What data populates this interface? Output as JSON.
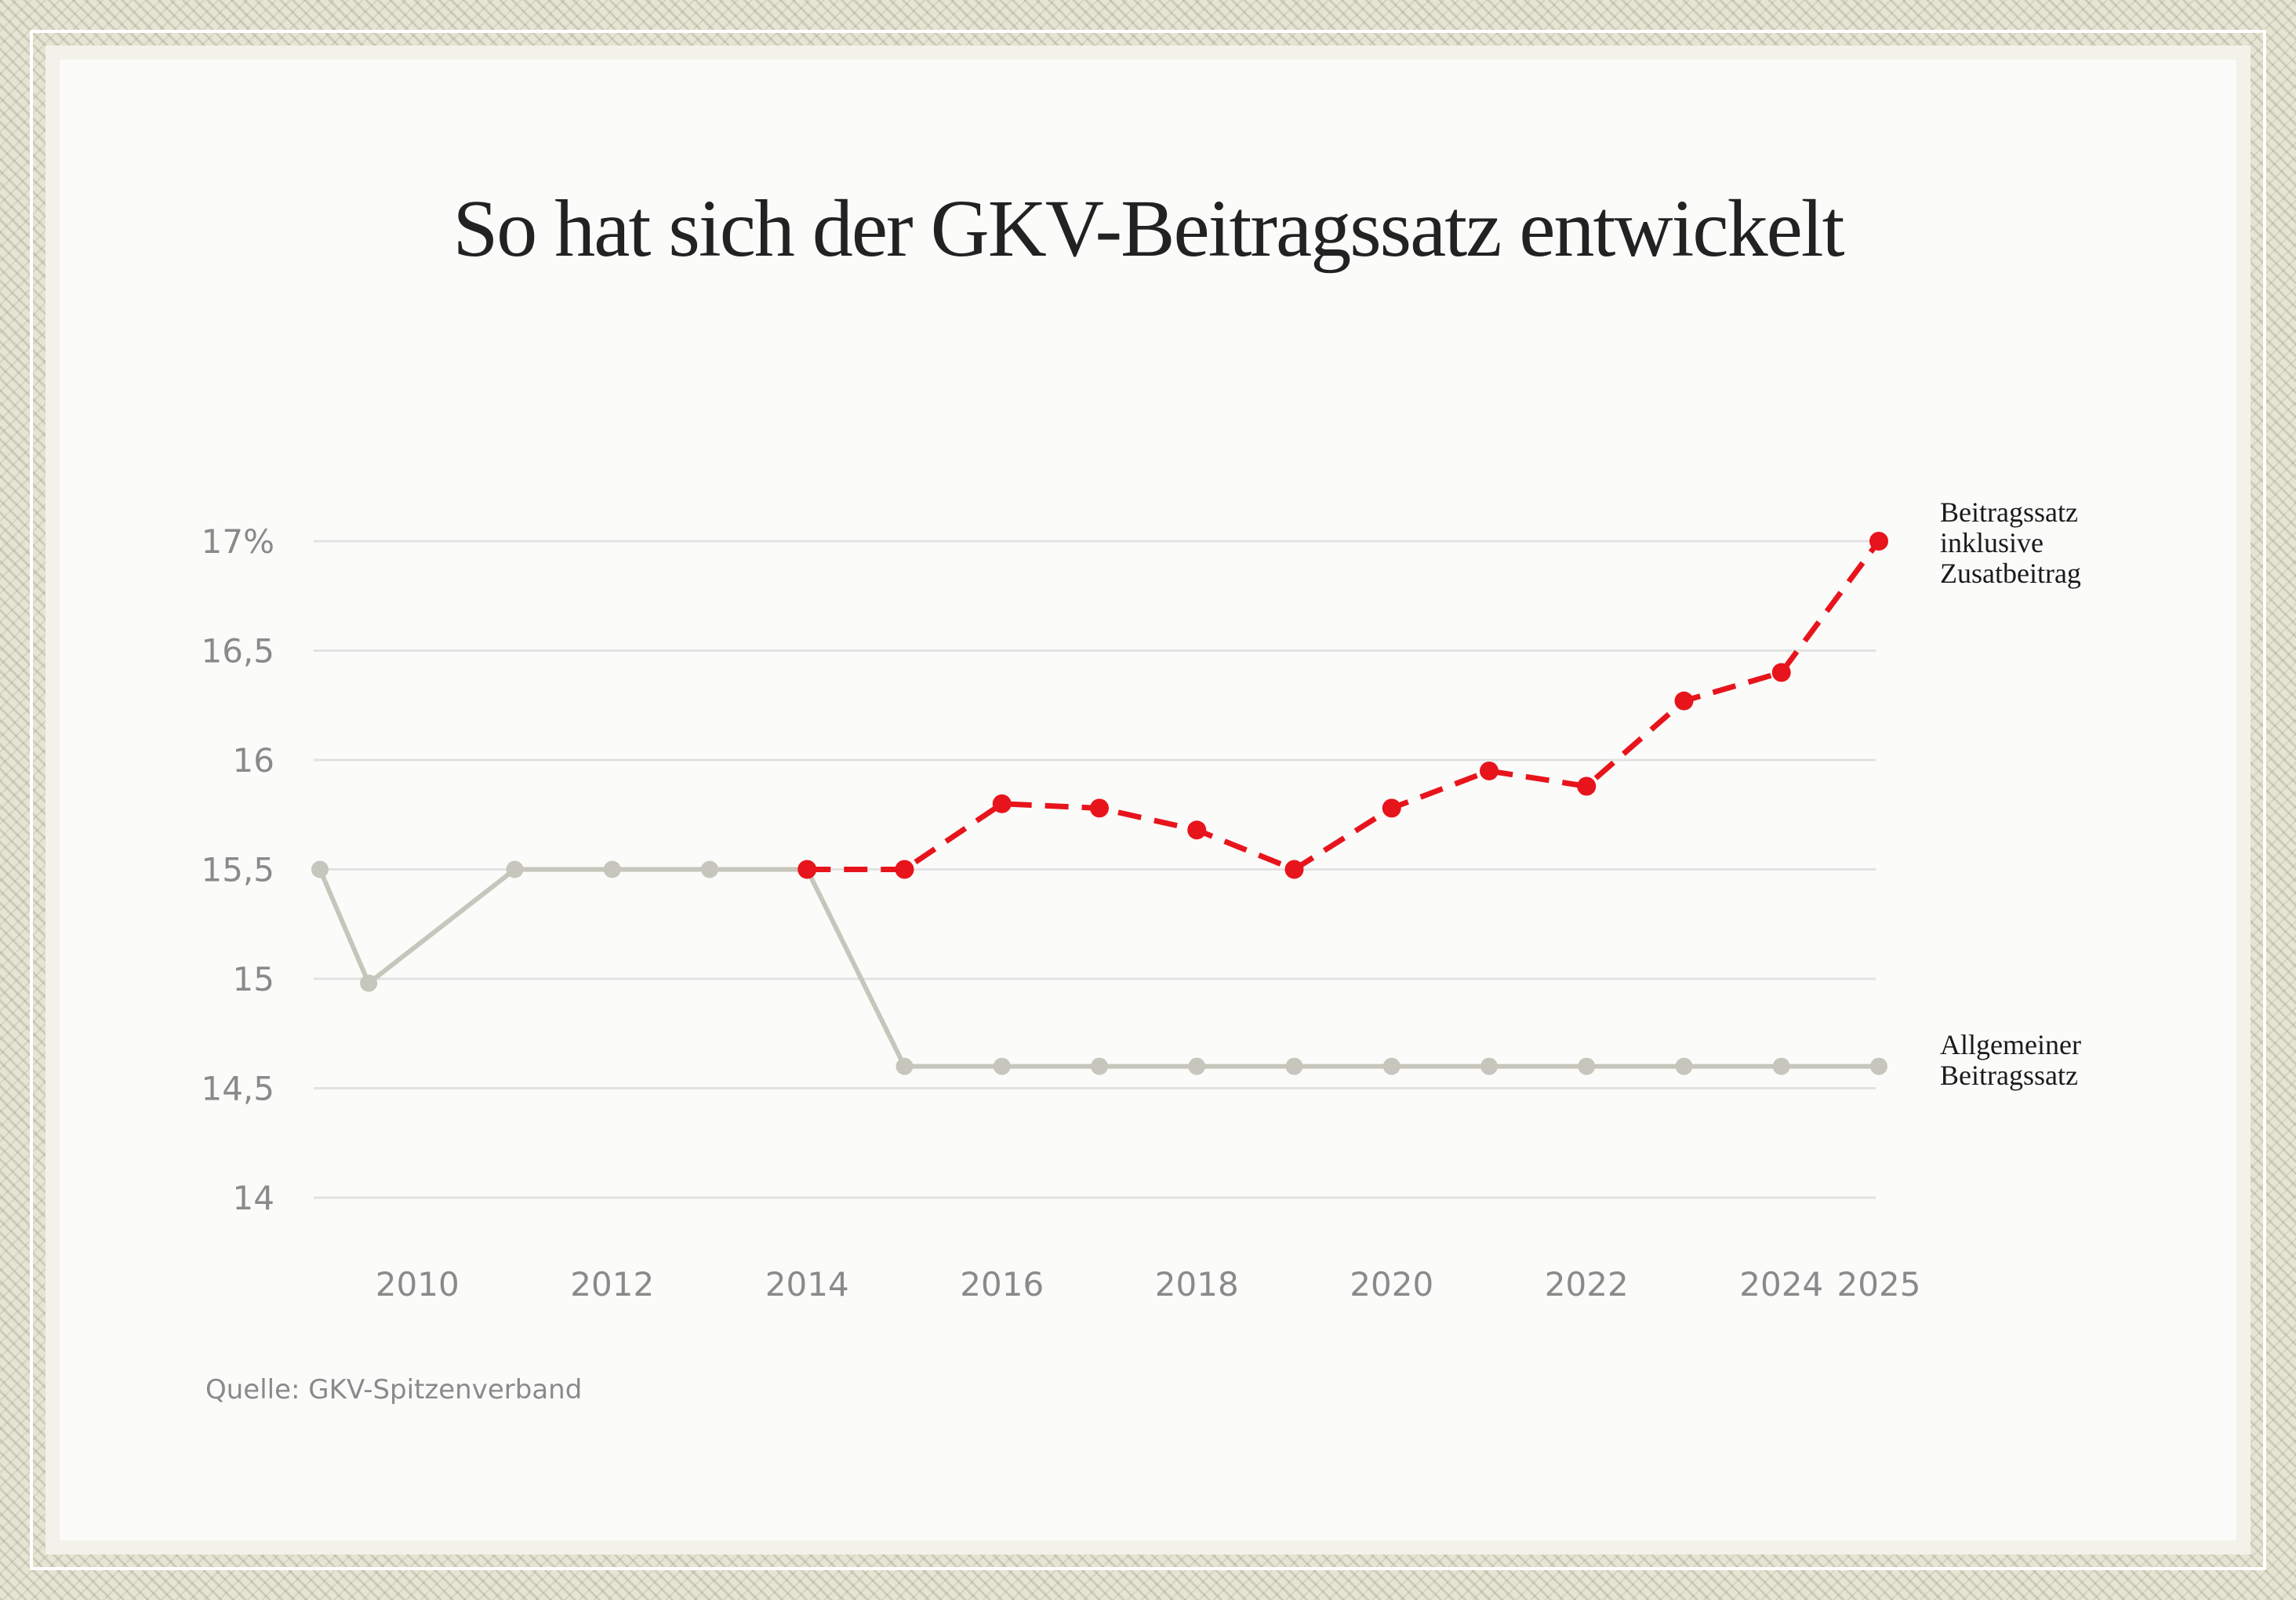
{
  "title": "So hat sich der GKV-Beitragssatz entwickelt",
  "source": "Quelle: GKV-Spitzenverband",
  "colors": {
    "series_total": "#e8141b",
    "series_general": "#c6c6bc",
    "grid": "#e2e2e2",
    "tick_text": "#8a8a8a"
  },
  "chart_data": {
    "type": "line",
    "title": "So hat sich der GKV-Beitragssatz entwickelt",
    "xlabel": "",
    "ylabel": "",
    "ylim": [
      14,
      17
    ],
    "xlim": [
      2009,
      2025
    ],
    "y_ticks": [
      {
        "value": 17,
        "label": "17%"
      },
      {
        "value": 16.5,
        "label": "16,5"
      },
      {
        "value": 16,
        "label": "16"
      },
      {
        "value": 15.5,
        "label": "15,5"
      },
      {
        "value": 15,
        "label": "15"
      },
      {
        "value": 14.5,
        "label": "14,5"
      },
      {
        "value": 14,
        "label": "14"
      }
    ],
    "x_ticks": [
      {
        "value": 2010,
        "label": "2010"
      },
      {
        "value": 2012,
        "label": "2012"
      },
      {
        "value": 2014,
        "label": "2014"
      },
      {
        "value": 2016,
        "label": "2016"
      },
      {
        "value": 2018,
        "label": "2018"
      },
      {
        "value": 2020,
        "label": "2020"
      },
      {
        "value": 2022,
        "label": "2022"
      },
      {
        "value": 2024,
        "label": "2024"
      },
      {
        "value": 2025,
        "label": "2025"
      }
    ],
    "grid": true,
    "series": [
      {
        "name": "Allgemeiner Beitragssatz",
        "label_lines": [
          "Allgemeiner",
          "Beitragssatz"
        ],
        "style": "solid",
        "x": [
          2009,
          2009.5,
          2011,
          2012,
          2013,
          2014,
          2015,
          2016,
          2017,
          2018,
          2019,
          2020,
          2021,
          2022,
          2023,
          2024,
          2025
        ],
        "y": [
          15.5,
          14.98,
          15.5,
          15.5,
          15.5,
          15.5,
          14.6,
          14.6,
          14.6,
          14.6,
          14.6,
          14.6,
          14.6,
          14.6,
          14.6,
          14.6,
          14.6
        ]
      },
      {
        "name": "Beitragssatz inklusive Zusatbeitrag",
        "label_lines": [
          "Beitragssatz",
          "inklusive",
          "Zusatbeitrag"
        ],
        "style": "dashed",
        "x": [
          2014,
          2015,
          2016,
          2017,
          2018,
          2019,
          2020,
          2021,
          2022,
          2023,
          2024,
          2025
        ],
        "y": [
          15.5,
          15.5,
          15.8,
          15.78,
          15.68,
          15.5,
          15.78,
          15.95,
          15.88,
          16.27,
          16.4,
          17
        ]
      }
    ]
  }
}
